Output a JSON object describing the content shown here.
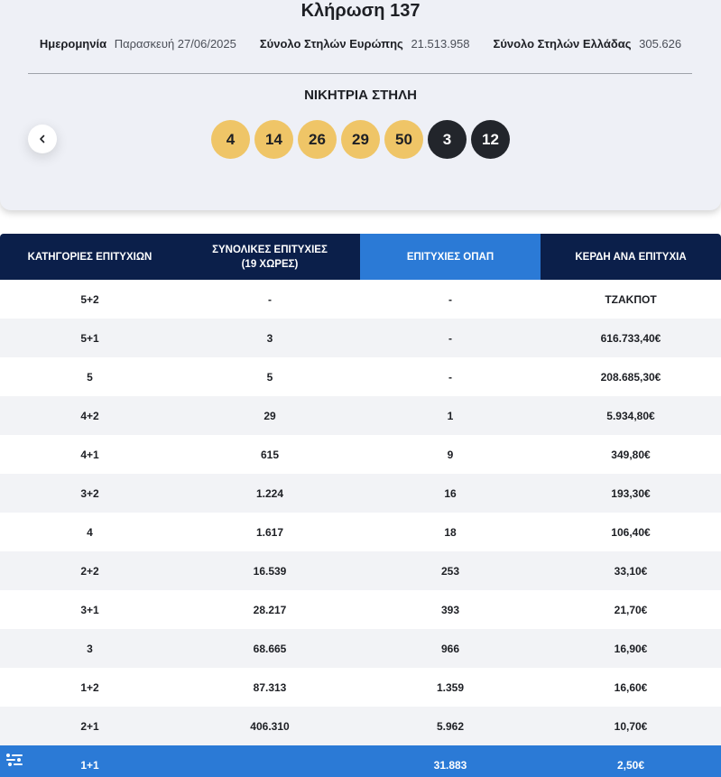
{
  "draw": {
    "title": "Κλήρωση 137",
    "date_label": "Ημερομηνία",
    "date_value": "Παρασκευή 27/06/2025",
    "europe_label": "Σύνολο Στηλών Ευρώπης",
    "europe_value": "21.513.958",
    "greece_label": "Σύνολο Στηλών Ελλάδας",
    "greece_value": "305.626"
  },
  "winning": {
    "label": "ΝΙΚΗΤΡΙΑ ΣΤΗΛΗ",
    "main_numbers": [
      "4",
      "14",
      "26",
      "29",
      "50"
    ],
    "bonus_numbers": [
      "3",
      "12"
    ]
  },
  "colors": {
    "main_ball": "#efc567",
    "bonus_ball": "#22252b",
    "header_dark": "#0b1f4a",
    "accent_blue": "#2b7ad6"
  },
  "icons": {
    "prev": "chevron-left-icon",
    "accessibility": "accessibility-icon"
  },
  "table": {
    "headers": [
      "ΚΑΤΗΓΟΡΙΕΣ ΕΠΙΤΥΧΙΩΝ",
      "ΣΥΝΟΛΙΚΕΣ ΕΠΙΤΥΧΙΕΣ\n(19 ΧΩΡΕΣ)",
      "ΕΠΙΤΥΧΙΕΣ ΟΠΑΠ",
      "ΚΕΡΔΗ ΑΝΑ ΕΠΙΤΥΧΙΑ"
    ],
    "rows": [
      [
        "5+2",
        "-",
        "-",
        "ΤΖΑΚΠΟΤ"
      ],
      [
        "5+1",
        "3",
        "-",
        "616.733,40€"
      ],
      [
        "5",
        "5",
        "-",
        "208.685,30€"
      ],
      [
        "4+2",
        "29",
        "1",
        "5.934,80€"
      ],
      [
        "4+1",
        "615",
        "9",
        "349,80€"
      ],
      [
        "3+2",
        "1.224",
        "16",
        "193,30€"
      ],
      [
        "4",
        "1.617",
        "18",
        "106,40€"
      ],
      [
        "2+2",
        "16.539",
        "253",
        "33,10€"
      ],
      [
        "3+1",
        "28.217",
        "393",
        "21,70€"
      ],
      [
        "3",
        "68.665",
        "966",
        "16,90€"
      ],
      [
        "1+2",
        "87.313",
        "1.359",
        "16,60€"
      ],
      [
        "2+1",
        "406.310",
        "5.962",
        "10,70€"
      ],
      [
        "1+1",
        "",
        "31.883",
        "2,50€"
      ]
    ]
  }
}
